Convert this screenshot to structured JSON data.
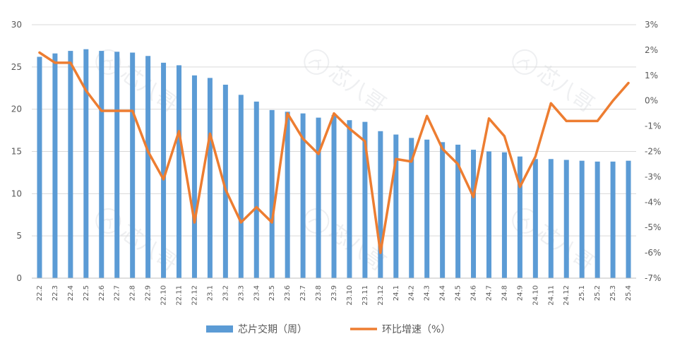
{
  "chart_data": {
    "type": "bar+line",
    "categories": [
      "22.2",
      "22.3",
      "22.4",
      "22.5",
      "22.6",
      "22.7",
      "22.8",
      "22.9",
      "22.10",
      "22.11",
      "22.12",
      "23.1",
      "23.2",
      "23.3",
      "23.4",
      "23.5",
      "23.6",
      "23.7",
      "23.8",
      "23.9",
      "23.10",
      "23.11",
      "23.12",
      "24.1",
      "24.2",
      "24.3",
      "24.4",
      "24.5",
      "24.6",
      "24.7",
      "24.8",
      "24.9",
      "24.10",
      "24.11",
      "24.12",
      "25.1",
      "25.2",
      "25.3",
      "25.4"
    ],
    "series": [
      {
        "name": "芯片交期（周）",
        "type": "bar",
        "axis": "left",
        "color": "#5B9BD5",
        "values": [
          26.2,
          26.6,
          26.9,
          27.1,
          26.9,
          26.8,
          26.7,
          26.3,
          25.5,
          25.2,
          24.0,
          23.7,
          22.9,
          21.7,
          20.9,
          19.9,
          19.7,
          19.5,
          19.0,
          19.3,
          18.7,
          18.5,
          17.4,
          17.0,
          16.6,
          16.4,
          16.1,
          15.8,
          15.2,
          15.0,
          14.9,
          14.4,
          14.1,
          14.1,
          14.0,
          13.9,
          13.8,
          13.8,
          13.9
        ]
      },
      {
        "name": "环比增速（%）",
        "type": "line",
        "axis": "right",
        "color": "#ED7D31",
        "values": [
          1.9,
          1.5,
          1.5,
          0.4,
          -0.4,
          -0.4,
          -0.4,
          -2.0,
          -3.1,
          -1.2,
          -4.8,
          -1.3,
          -3.5,
          -4.8,
          -4.2,
          -4.8,
          -0.5,
          -1.5,
          -2.1,
          -0.5,
          -1.1,
          -1.6,
          -6.0,
          -2.3,
          -2.4,
          -0.6,
          -1.9,
          -2.5,
          -3.8,
          -0.7,
          -1.4,
          -3.4,
          -2.2,
          -0.1,
          -0.8,
          -0.8,
          -0.8,
          0.0,
          0.7
        ]
      }
    ],
    "y_left": {
      "min": 0,
      "max": 30,
      "ticks": [
        "0",
        "5",
        "10",
        "15",
        "20",
        "25",
        "30"
      ]
    },
    "y_right": {
      "min": -7,
      "max": 3,
      "ticks": [
        "-7%",
        "-6%",
        "-5%",
        "-4%",
        "-3%",
        "-2%",
        "-1%",
        "0%",
        "1%",
        "2%",
        "3%"
      ]
    },
    "grid": true,
    "legend": "bottom",
    "watermark": "芯八哥"
  }
}
